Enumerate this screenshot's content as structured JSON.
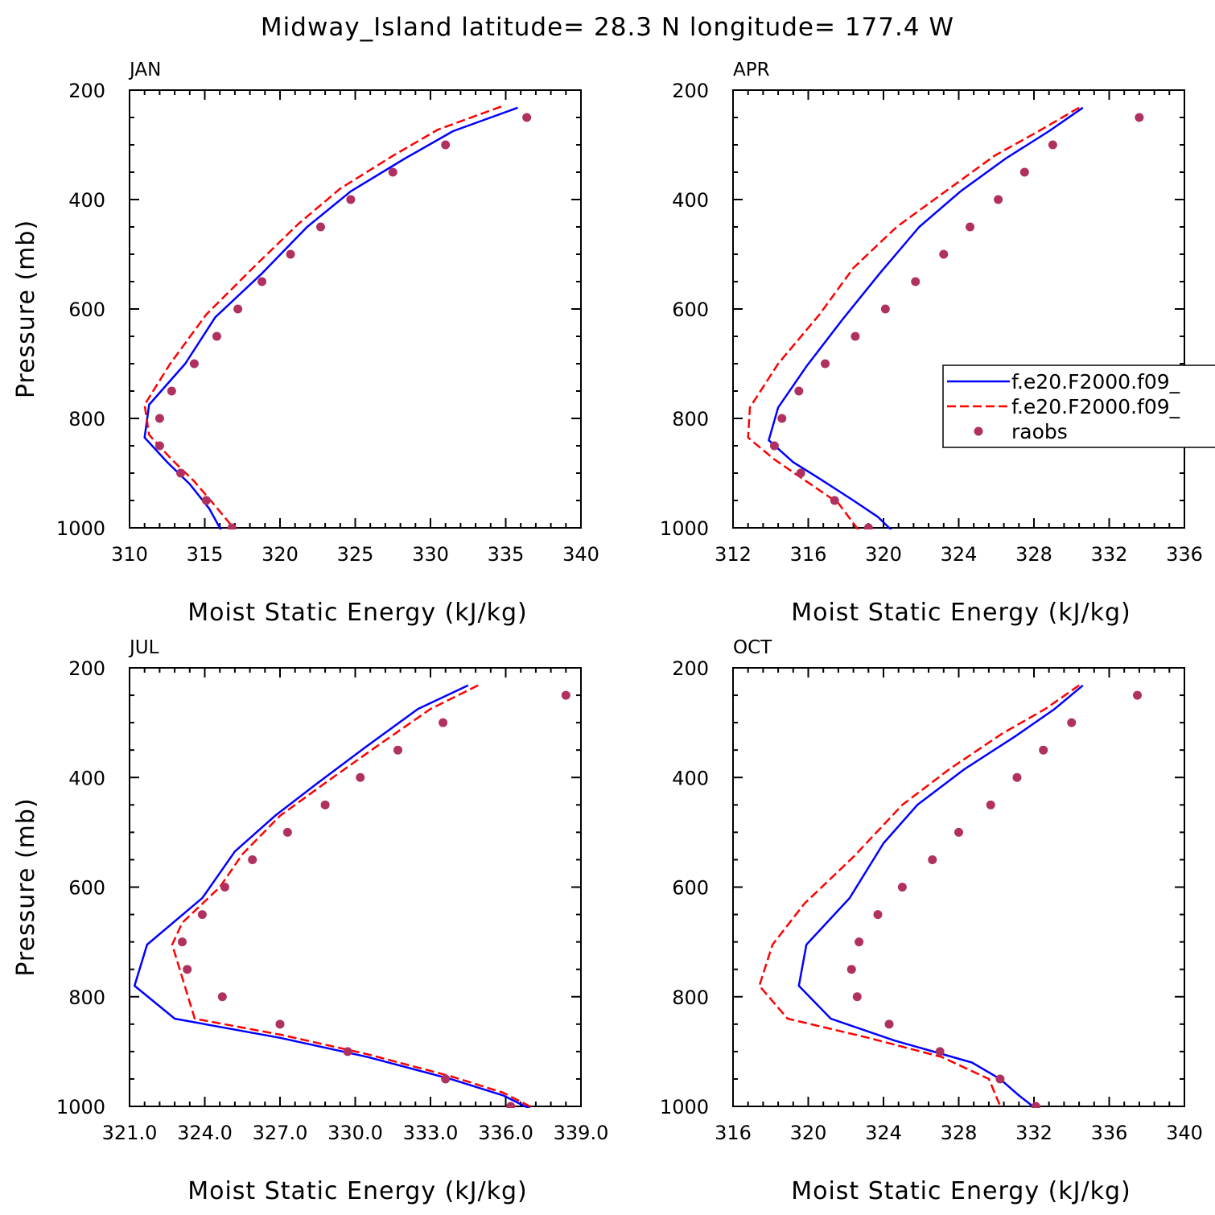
{
  "title": "Midway_Island  latitude= 28.3 N longitude= 177.4 W",
  "legend": {
    "placement": "right of APR panel",
    "entries": [
      {
        "label": "f.e20.F2000.f09_",
        "style": "solid",
        "color": "#0000ff"
      },
      {
        "label": "f.e20.F2000.f09_",
        "style": "dashed",
        "color": "#ff0000"
      },
      {
        "label": "raobs",
        "style": "marker",
        "color": "#b03060"
      }
    ]
  },
  "chart_data": [
    {
      "type": "line",
      "panel": "JAN",
      "xlabel": "Moist Static Energy (kJ/kg)",
      "ylabel": "Pressure (mb)",
      "xlim": [
        310,
        340
      ],
      "ylim": [
        1000,
        200
      ],
      "xticks": [
        "310",
        "315",
        "320",
        "325",
        "330",
        "335",
        "340"
      ],
      "xtick_values": [
        310,
        315,
        320,
        325,
        330,
        335,
        340
      ],
      "yticks": [
        "200",
        "400",
        "600",
        "800",
        "1000"
      ],
      "ytick_values": [
        200,
        400,
        600,
        800,
        1000
      ],
      "series": [
        {
          "type": "line",
          "style": "solid",
          "color": "#0000ff",
          "points": [
            [
              335.8,
              232
            ],
            [
              331.5,
              275
            ],
            [
              328.3,
              325
            ],
            [
              324.7,
              385
            ],
            [
              321.8,
              450
            ],
            [
              318.8,
              535
            ],
            [
              315.7,
              615
            ],
            [
              313.7,
              700
            ],
            [
              311.3,
              775
            ],
            [
              311,
              835
            ],
            [
              312.5,
              880
            ],
            [
              314,
              920
            ],
            [
              315.3,
              965
            ],
            [
              316.2,
              1010
            ]
          ]
        },
        {
          "type": "line",
          "style": "dashed",
          "color": "#ff0000",
          "points": [
            [
              334.7,
              230
            ],
            [
              330.5,
              272
            ],
            [
              327.5,
              320
            ],
            [
              324,
              380
            ],
            [
              321.2,
              445
            ],
            [
              318.2,
              525
            ],
            [
              315.1,
              610
            ],
            [
              312.7,
              700
            ],
            [
              311,
              775
            ],
            [
              311.3,
              830
            ],
            [
              312.8,
              875
            ],
            [
              314.3,
              915
            ],
            [
              315.7,
              960
            ],
            [
              317.2,
              1010
            ]
          ]
        },
        {
          "type": "scatter",
          "style": "marker",
          "color": "#b03060",
          "points": [
            [
              336.4,
              250
            ],
            [
              331,
              300
            ],
            [
              327.5,
              350
            ],
            [
              324.7,
              400
            ],
            [
              322.7,
              450
            ],
            [
              320.7,
              500
            ],
            [
              318.8,
              550
            ],
            [
              317.2,
              600
            ],
            [
              315.8,
              650
            ],
            [
              314.3,
              700
            ],
            [
              312.8,
              750
            ],
            [
              312,
              800
            ],
            [
              312,
              850
            ],
            [
              313.4,
              900
            ],
            [
              315.1,
              950
            ],
            [
              316.8,
              1000
            ]
          ]
        }
      ]
    },
    {
      "type": "line",
      "panel": "APR",
      "xlabel": "Moist Static Energy (kJ/kg)",
      "ylabel": "",
      "xlim": [
        312,
        336
      ],
      "ylim": [
        1000,
        200
      ],
      "xticks": [
        "312",
        "316",
        "320",
        "324",
        "328",
        "332",
        "336"
      ],
      "xtick_values": [
        312,
        316,
        320,
        324,
        328,
        332,
        336
      ],
      "yticks": [
        "200",
        "400",
        "600",
        "800",
        "1000"
      ],
      "ytick_values": [
        200,
        400,
        600,
        800,
        1000
      ],
      "series": [
        {
          "type": "line",
          "style": "solid",
          "color": "#0000ff",
          "points": [
            [
              330.6,
              232
            ],
            [
              328.8,
              275
            ],
            [
              326.5,
              325
            ],
            [
              324.1,
              385
            ],
            [
              321.9,
              450
            ],
            [
              319.8,
              535
            ],
            [
              317.8,
              620
            ],
            [
              315.9,
              705
            ],
            [
              314.4,
              780
            ],
            [
              313.9,
              840
            ],
            [
              315.2,
              880
            ],
            [
              316.6,
              910
            ],
            [
              318.4,
              950
            ],
            [
              319.7,
              980
            ],
            [
              320.6,
              1010
            ]
          ]
        },
        {
          "type": "line",
          "style": "dashed",
          "color": "#ff0000",
          "points": [
            [
              330.4,
              232
            ],
            [
              328.4,
              272
            ],
            [
              325.9,
              320
            ],
            [
              323.3,
              385
            ],
            [
              320.7,
              450
            ],
            [
              318.4,
              525
            ],
            [
              316.6,
              610
            ],
            [
              314.4,
              700
            ],
            [
              312.9,
              780
            ],
            [
              312.8,
              835
            ],
            [
              314.2,
              875
            ],
            [
              315.9,
              915
            ],
            [
              317.6,
              955
            ],
            [
              318.8,
              1010
            ]
          ]
        },
        {
          "type": "scatter",
          "style": "marker",
          "color": "#b03060",
          "points": [
            [
              333.6,
              250
            ],
            [
              329,
              300
            ],
            [
              327.5,
              350
            ],
            [
              326.1,
              400
            ],
            [
              324.6,
              450
            ],
            [
              323.2,
              500
            ],
            [
              321.7,
              550
            ],
            [
              320.1,
              600
            ],
            [
              318.5,
              650
            ],
            [
              316.9,
              700
            ],
            [
              315.5,
              750
            ],
            [
              314.6,
              800
            ],
            [
              314.2,
              850
            ],
            [
              315.6,
              900
            ],
            [
              317.4,
              950
            ],
            [
              319.2,
              1000
            ]
          ]
        }
      ]
    },
    {
      "type": "line",
      "panel": "JUL",
      "xlabel": "Moist Static Energy (kJ/kg)",
      "ylabel": "Pressure (mb)",
      "xlim": [
        321,
        339
      ],
      "ylim": [
        1000,
        200
      ],
      "xticks": [
        "321.0",
        "324.0",
        "327.0",
        "330.0",
        "333.0",
        "336.0",
        "339.0"
      ],
      "xtick_values": [
        321,
        324,
        327,
        330,
        333,
        336,
        339
      ],
      "yticks": [
        "200",
        "400",
        "600",
        "800",
        "1000"
      ],
      "ytick_values": [
        200,
        400,
        600,
        800,
        1000
      ],
      "series": [
        {
          "type": "line",
          "style": "solid",
          "color": "#0000ff",
          "points": [
            [
              334.5,
              232
            ],
            [
              332.5,
              275
            ],
            [
              330.4,
              345
            ],
            [
              328.5,
              410
            ],
            [
              326.8,
              470
            ],
            [
              325.2,
              535
            ],
            [
              323.9,
              620
            ],
            [
              321.7,
              705
            ],
            [
              321.2,
              780
            ],
            [
              322.8,
              840
            ],
            [
              327,
              875
            ],
            [
              330.5,
              910
            ],
            [
              333.8,
              950
            ],
            [
              335.9,
              980
            ],
            [
              337.3,
              1012
            ]
          ]
        },
        {
          "type": "line",
          "style": "dashed",
          "color": "#ff0000",
          "points": [
            [
              334.9,
              232
            ],
            [
              333,
              275
            ],
            [
              330.8,
              345
            ],
            [
              328.8,
              410
            ],
            [
              327,
              470
            ],
            [
              325.5,
              540
            ],
            [
              324.6,
              600
            ],
            [
              323.1,
              665
            ],
            [
              322.7,
              705
            ],
            [
              323.2,
              780
            ],
            [
              323.6,
              840
            ],
            [
              327.1,
              870
            ],
            [
              330.5,
              905
            ],
            [
              333.8,
              945
            ],
            [
              335.9,
              975
            ],
            [
              337.6,
              1015
            ]
          ]
        },
        {
          "type": "scatter",
          "style": "marker",
          "color": "#b03060",
          "points": [
            [
              338.4,
              250
            ],
            [
              333.5,
              300
            ],
            [
              331.7,
              350
            ],
            [
              330.2,
              400
            ],
            [
              328.8,
              450
            ],
            [
              327.3,
              500
            ],
            [
              325.9,
              550
            ],
            [
              324.8,
              600
            ],
            [
              323.9,
              650
            ],
            [
              323.1,
              700
            ],
            [
              323.3,
              750
            ],
            [
              324.7,
              800
            ],
            [
              327,
              850
            ],
            [
              329.7,
              900
            ],
            [
              333.6,
              950
            ],
            [
              336.2,
              1000
            ]
          ]
        }
      ]
    },
    {
      "type": "line",
      "panel": "OCT",
      "xlabel": "Moist Static Energy (kJ/kg)",
      "ylabel": "",
      "xlim": [
        316,
        340
      ],
      "ylim": [
        1000,
        200
      ],
      "xticks": [
        "316",
        "320",
        "324",
        "328",
        "332",
        "336",
        "340"
      ],
      "xtick_values": [
        316,
        320,
        324,
        328,
        332,
        336,
        340
      ],
      "yticks": [
        "200",
        "400",
        "600",
        "800",
        "1000"
      ],
      "ytick_values": [
        200,
        400,
        600,
        800,
        1000
      ],
      "series": [
        {
          "type": "line",
          "style": "solid",
          "color": "#0000ff",
          "points": [
            [
              334.6,
              232
            ],
            [
              333.1,
              275
            ],
            [
              331,
              325
            ],
            [
              328.3,
              385
            ],
            [
              325.8,
              450
            ],
            [
              324,
              520
            ],
            [
              322.2,
              620
            ],
            [
              319.9,
              705
            ],
            [
              319.5,
              780
            ],
            [
              321.2,
              840
            ],
            [
              324.6,
              880
            ],
            [
              328.7,
              920
            ],
            [
              330.2,
              950
            ],
            [
              331.2,
              980
            ],
            [
              332.4,
              1012
            ]
          ]
        },
        {
          "type": "line",
          "style": "dashed",
          "color": "#ff0000",
          "points": [
            [
              334.4,
              232
            ],
            [
              332.6,
              275
            ],
            [
              330.3,
              320
            ],
            [
              327.5,
              385
            ],
            [
              325,
              450
            ],
            [
              322.4,
              545
            ],
            [
              319.8,
              630
            ],
            [
              318.1,
              705
            ],
            [
              317.4,
              780
            ],
            [
              318.9,
              840
            ],
            [
              323.2,
              875
            ],
            [
              327.1,
              910
            ],
            [
              329.6,
              950
            ],
            [
              330.4,
              1015
            ]
          ]
        },
        {
          "type": "scatter",
          "style": "marker",
          "color": "#b03060",
          "points": [
            [
              337.5,
              250
            ],
            [
              334,
              300
            ],
            [
              332.5,
              350
            ],
            [
              331.1,
              400
            ],
            [
              329.7,
              450
            ],
            [
              328,
              500
            ],
            [
              326.6,
              550
            ],
            [
              325,
              600
            ],
            [
              323.7,
              650
            ],
            [
              322.7,
              700
            ],
            [
              322.3,
              750
            ],
            [
              322.6,
              800
            ],
            [
              324.3,
              850
            ],
            [
              327,
              900
            ],
            [
              330.2,
              950
            ],
            [
              332.1,
              1000
            ]
          ]
        }
      ]
    }
  ]
}
